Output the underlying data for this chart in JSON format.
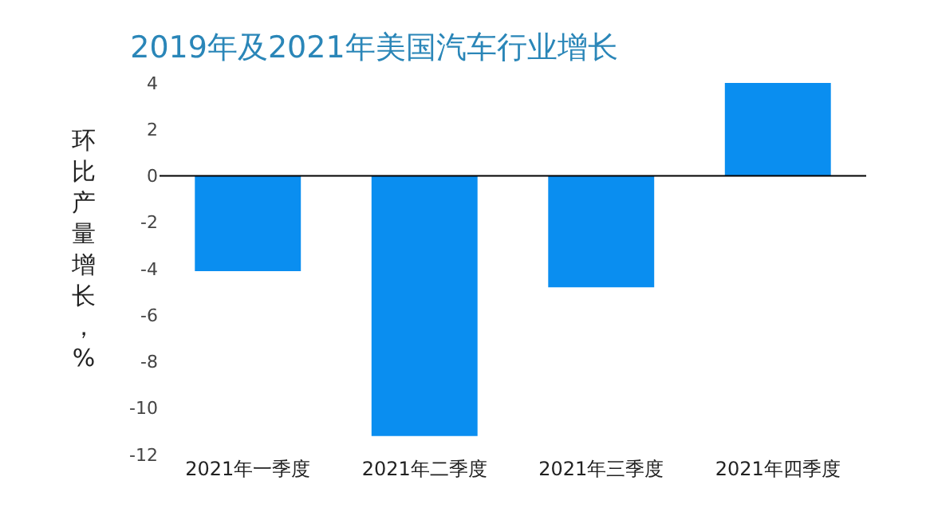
{
  "chart_data": {
    "type": "bar",
    "title": "2019年及2021年美国汽车行业增长",
    "ylabel": "环比产量增长，%",
    "categories": [
      "2021年一季度",
      "2021年二季度",
      "2021年三季度",
      "2021年四季度"
    ],
    "values": [
      -4.1,
      -11.2,
      -4.8,
      4.0
    ],
    "color": "#0a8ef0",
    "ylim": [
      -12,
      4
    ],
    "yticks": [
      -12,
      -10,
      -8,
      -6,
      -4,
      -2,
      0,
      2,
      4
    ],
    "grid": false,
    "legend": false,
    "ref_lines": [
      {
        "axis": "y",
        "value": 0,
        "color": "#000000"
      }
    ]
  }
}
